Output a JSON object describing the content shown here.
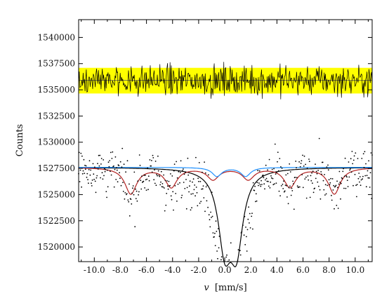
{
  "chart_data": {
    "type": "scatter",
    "title": "",
    "xlabel": "v [mm/s]",
    "xlabel_italic": "v",
    "xlabel_unit": "[mm/s]",
    "ylabel": "Counts",
    "xlim": [
      -11.2,
      11.3
    ],
    "ylim": [
      1518600,
      1541700
    ],
    "x_ticks": [
      -10.0,
      -8.0,
      -6.0,
      -4.0,
      -2.0,
      0.0,
      2.0,
      4.0,
      6.0,
      8.0,
      10.0
    ],
    "x_tick_labels": [
      "-10.0",
      "-8.0",
      "-6.0",
      "-4.0",
      "-2.0",
      "0.0",
      "2.0",
      "4.0",
      "6.0",
      "8.0",
      "10.0"
    ],
    "y_ticks": [
      1520000,
      1522500,
      1525000,
      1527500,
      1530000,
      1532500,
      1535000,
      1537500,
      1540000
    ],
    "y_tick_labels": [
      "1520000",
      "1522500",
      "1525000",
      "1527500",
      "1530000",
      "1532500",
      "1535000",
      "1537500",
      "1540000"
    ],
    "grid": false,
    "legend": "none",
    "residual_panel": {
      "center": 1535900,
      "band": [
        1534650,
        1537100
      ],
      "amplitude": 1300,
      "band_color": "#ffff00",
      "line_color": "#000000"
    },
    "measured_points": {
      "name": "",
      "baseline": 1527600,
      "noise": 1150,
      "color": "#000000"
    },
    "fit_total": {
      "baseline": 1527600,
      "color": "#000000",
      "peaks": [
        {
          "x": 0.0,
          "depth": 7050,
          "width": 0.6
        },
        {
          "x": 0.9,
          "depth": 7150,
          "width": 0.6
        }
      ]
    },
    "component_sextet": {
      "baseline": 1527600,
      "color": "#b22222",
      "peaks": [
        {
          "x": -7.2,
          "depth": 2500,
          "width": 0.55
        },
        {
          "x": -4.1,
          "depth": 1850,
          "width": 0.55
        },
        {
          "x": -0.9,
          "depth": 1100,
          "width": 0.55
        },
        {
          "x": 1.8,
          "depth": 1100,
          "width": 0.55
        },
        {
          "x": 5.0,
          "depth": 1850,
          "width": 0.55
        },
        {
          "x": 8.4,
          "depth": 2500,
          "width": 0.55
        }
      ]
    },
    "component_doublet": {
      "baseline": 1527600,
      "color": "#1e90ff",
      "peaks": [
        {
          "x": -0.6,
          "depth": 850,
          "width": 0.45
        },
        {
          "x": 1.6,
          "depth": 850,
          "width": 0.45
        }
      ]
    }
  }
}
